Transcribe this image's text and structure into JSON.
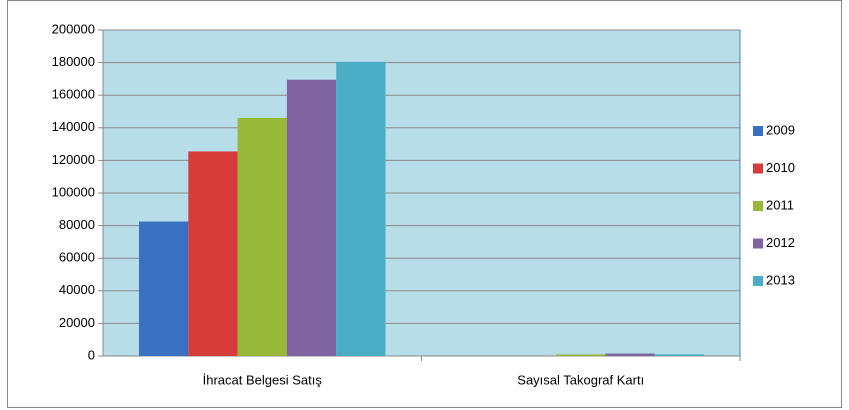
{
  "chart_data": {
    "type": "bar",
    "categories": [
      "İhracat Belgesi Satış",
      "Sayısal Takograf Kartı"
    ],
    "series": [
      {
        "name": "2009",
        "color": "#3a70c2",
        "values": [
          82500,
          0
        ]
      },
      {
        "name": "2010",
        "color": "#d63c3a",
        "values": [
          125500,
          0
        ]
      },
      {
        "name": "2011",
        "color": "#98b83a",
        "values": [
          146000,
          1000
        ]
      },
      {
        "name": "2012",
        "color": "#8064a2",
        "values": [
          169500,
          1500
        ]
      },
      {
        "name": "2013",
        "color": "#4bacc6",
        "values": [
          180500,
          1000
        ]
      }
    ],
    "ylim": [
      0,
      200000
    ],
    "yticks": [
      0,
      20000,
      40000,
      60000,
      80000,
      100000,
      120000,
      140000,
      160000,
      180000,
      200000
    ],
    "grid": true,
    "legend": "right",
    "plot_background": "#b7dde8"
  }
}
